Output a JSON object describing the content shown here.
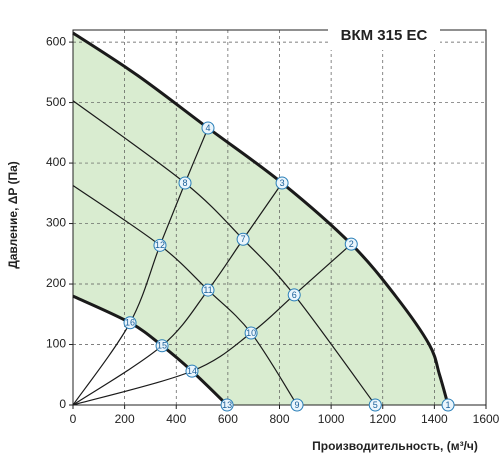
{
  "chart_data": {
    "type": "line",
    "title": "ВКМ  315 ЕС",
    "x_label": "Производительность, (м³/ч)",
    "y_label": "Давление, ΔP (Па)",
    "xlim": [
      0,
      1600
    ],
    "ylim": [
      0,
      620
    ],
    "xticks": [
      0,
      200,
      400,
      600,
      800,
      1000,
      1200,
      1400,
      1600
    ],
    "yticks": [
      0,
      100,
      200,
      300,
      400,
      500,
      600
    ],
    "grid": true,
    "fill_color": "#d9ecd0",
    "series": [
      {
        "color": "#1a1a1a",
        "line_width": 3,
        "x": [
          0,
          250,
          523,
          810,
          1078,
          1250,
          1380,
          1420,
          1453
        ],
        "values": [
          615,
          545,
          458,
          367,
          266,
          180,
          100,
          50,
          0
        ]
      },
      {
        "color": "#1a1a1a",
        "line_width": 3,
        "x": [
          0,
          221,
          345,
          461,
          597
        ],
        "values": [
          180,
          136,
          98,
          56,
          0
        ]
      },
      {
        "color": "#1a1a1a",
        "line_width": 1.2,
        "x": [
          0,
          434,
          659,
          857,
          1171
        ],
        "values": [
          503,
          367,
          274,
          182,
          0
        ]
      },
      {
        "color": "#1a1a1a",
        "line_width": 1.2,
        "x": [
          0,
          337,
          523,
          690,
          868
        ],
        "values": [
          363,
          264,
          190,
          119,
          0
        ]
      },
      {
        "color": "#1a1a1a",
        "line_width": 1.2,
        "x": [
          0,
          221,
          337,
          434,
          523
        ],
        "values": [
          0,
          136,
          264,
          367,
          458
        ]
      },
      {
        "color": "#1a1a1a",
        "line_width": 1.2,
        "x": [
          0,
          345,
          523,
          659,
          810
        ],
        "values": [
          0,
          98,
          190,
          274,
          367
        ]
      },
      {
        "color": "#1a1a1a",
        "line_width": 1.2,
        "x": [
          0,
          461,
          690,
          857,
          1078
        ],
        "values": [
          0,
          56,
          119,
          182,
          266
        ]
      }
    ],
    "points": [
      {
        "label": "1",
        "x": 1453,
        "y": 0
      },
      {
        "label": "2",
        "x": 1078,
        "y": 266
      },
      {
        "label": "3",
        "x": 810,
        "y": 367
      },
      {
        "label": "4",
        "x": 523,
        "y": 458
      },
      {
        "label": "5",
        "x": 1171,
        "y": 0
      },
      {
        "label": "6",
        "x": 857,
        "y": 182
      },
      {
        "label": "7",
        "x": 659,
        "y": 274
      },
      {
        "label": "8",
        "x": 434,
        "y": 367
      },
      {
        "label": "9",
        "x": 868,
        "y": 0
      },
      {
        "label": "10",
        "x": 690,
        "y": 119
      },
      {
        "label": "11",
        "x": 523,
        "y": 190
      },
      {
        "label": "12",
        "x": 337,
        "y": 264
      },
      {
        "label": "13",
        "x": 597,
        "y": 0
      },
      {
        "label": "14",
        "x": 461,
        "y": 56
      },
      {
        "label": "15",
        "x": 345,
        "y": 98
      },
      {
        "label": "16",
        "x": 221,
        "y": 136
      }
    ]
  }
}
